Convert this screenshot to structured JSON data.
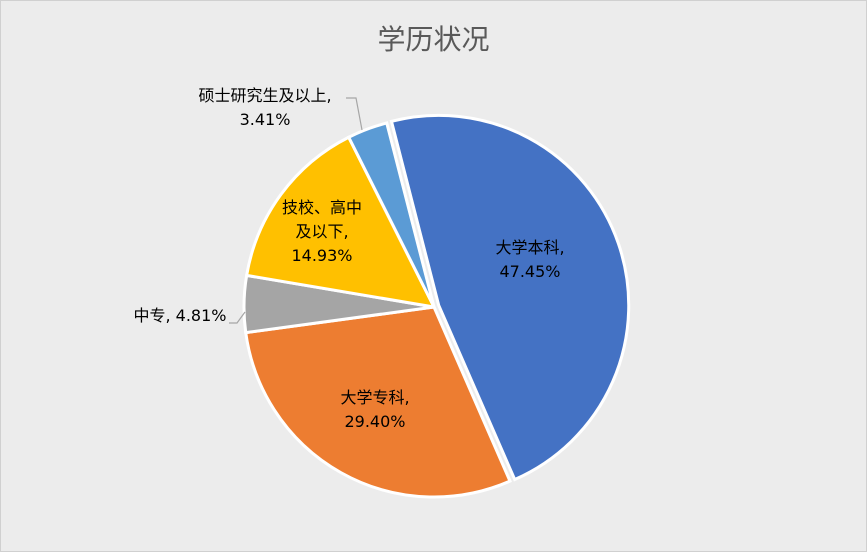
{
  "chart_data": {
    "type": "pie",
    "title": "学历状况",
    "categories": [
      "大学本科",
      "大学专科",
      "中专",
      "技校、高中及以下",
      "硕士研究生及以上"
    ],
    "values": [
      47.45,
      29.4,
      4.81,
      14.93,
      3.41
    ],
    "value_format": "percent",
    "colors": [
      "#4472C4",
      "#ED7D31",
      "#A5A5A5",
      "#FFC000",
      "#5B9BD5"
    ],
    "legend": "none",
    "data_labels": [
      "大学本科, 47.45%",
      "大学专科, 29.40%",
      "中专, 4.81%",
      "技校、高中及以下, 14.93%",
      "硕士研究生及以上, 3.41%"
    ]
  }
}
